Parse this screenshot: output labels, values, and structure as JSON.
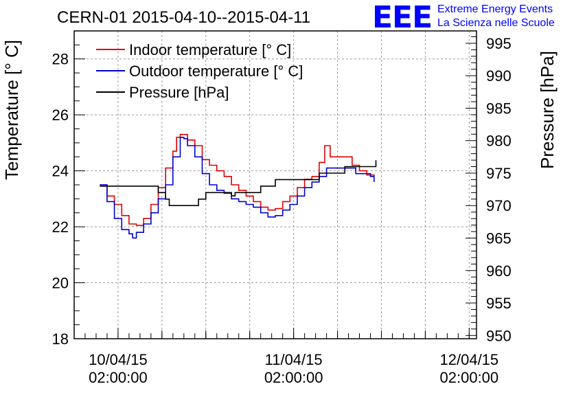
{
  "header": {
    "title": "CERN-01 2015-04-10--2015-04-11",
    "logo_text": "EEE",
    "org_line1": "Extreme Energy Events",
    "org_line2": "La Scienza nelle Scuole",
    "brand_color": "#0000ff"
  },
  "chart_data": {
    "type": "line",
    "ylabel": "Temperature [° C]",
    "y2label": "Pressure [hPa]",
    "ylim": [
      18,
      29
    ],
    "y2lim": [
      949.5,
      996.9
    ],
    "xlim": [
      "2015-04-09T20:00:00",
      "2015-04-12T03:00:00"
    ],
    "yticks": [
      "18",
      "20",
      "22",
      "24",
      "26",
      "28"
    ],
    "y2ticks": [
      "950",
      "955",
      "960",
      "965",
      "970",
      "975",
      "980",
      "985",
      "990",
      "995"
    ],
    "xticks": [
      {
        "x": "2015-04-10T02:00:00",
        "date": "10/04/15",
        "time": "02:00:00"
      },
      {
        "x": "2015-04-11T02:00:00",
        "date": "11/04/15",
        "time": "02:00:00"
      },
      {
        "x": "2015-04-12T02:00:00",
        "date": "12/04/15",
        "time": "02:00:00"
      }
    ],
    "grid": true,
    "legend_position": "top-left",
    "series": [
      {
        "name": "Indoor temperature [° C]",
        "color": "#e00000",
        "axis": "left",
        "points": [
          [
            "2015-04-09T23:30",
            23.5
          ],
          [
            "2015-04-10T00:30",
            23.1
          ],
          [
            "2015-04-10T01:30",
            22.8
          ],
          [
            "2015-04-10T02:30",
            22.4
          ],
          [
            "2015-04-10T03:30",
            22.1
          ],
          [
            "2015-04-10T04:30",
            22.05
          ],
          [
            "2015-04-10T05:30",
            22.3
          ],
          [
            "2015-04-10T06:30",
            22.8
          ],
          [
            "2015-04-10T07:30",
            23.4
          ],
          [
            "2015-04-10T08:30",
            24.1
          ],
          [
            "2015-04-10T09:30",
            24.7
          ],
          [
            "2015-04-10T10:00",
            25.2
          ],
          [
            "2015-04-10T10:30",
            25.3
          ],
          [
            "2015-04-10T11:30",
            25.1
          ],
          [
            "2015-04-10T12:30",
            24.9
          ],
          [
            "2015-04-10T13:30",
            24.4
          ],
          [
            "2015-04-10T14:30",
            24.2
          ],
          [
            "2015-04-10T15:30",
            24.0
          ],
          [
            "2015-04-10T16:30",
            23.8
          ],
          [
            "2015-04-10T17:30",
            23.5
          ],
          [
            "2015-04-10T18:30",
            23.3
          ],
          [
            "2015-04-10T19:30",
            23.1
          ],
          [
            "2015-04-10T20:30",
            22.9
          ],
          [
            "2015-04-10T21:30",
            22.7
          ],
          [
            "2015-04-10T22:30",
            22.6
          ],
          [
            "2015-04-10T23:30",
            22.65
          ],
          [
            "2015-04-11T00:30",
            22.9
          ],
          [
            "2015-04-11T01:30",
            23.1
          ],
          [
            "2015-04-11T02:30",
            23.4
          ],
          [
            "2015-04-11T03:30",
            23.7
          ],
          [
            "2015-04-11T04:30",
            23.8
          ],
          [
            "2015-04-11T05:30",
            24.3
          ],
          [
            "2015-04-11T06:15",
            24.9
          ],
          [
            "2015-04-11T07:00",
            24.5
          ],
          [
            "2015-04-11T08:00",
            24.5
          ],
          [
            "2015-04-11T09:00",
            24.5
          ],
          [
            "2015-04-11T10:00",
            24.2
          ],
          [
            "2015-04-11T11:00",
            24.0
          ],
          [
            "2015-04-11T12:00",
            23.85
          ],
          [
            "2015-04-11T13:00",
            23.8
          ]
        ]
      },
      {
        "name": "Outdoor temperature [° C]",
        "color": "#0000d0",
        "axis": "left",
        "points": [
          [
            "2015-04-09T23:30",
            23.5
          ],
          [
            "2015-04-10T00:30",
            22.9
          ],
          [
            "2015-04-10T01:30",
            22.3
          ],
          [
            "2015-04-10T02:30",
            21.9
          ],
          [
            "2015-04-10T03:30",
            21.75
          ],
          [
            "2015-04-10T04:00",
            21.6
          ],
          [
            "2015-04-10T04:30",
            21.8
          ],
          [
            "2015-04-10T05:30",
            22.1
          ],
          [
            "2015-04-10T06:30",
            22.5
          ],
          [
            "2015-04-10T07:30",
            23.0
          ],
          [
            "2015-04-10T08:30",
            23.5
          ],
          [
            "2015-04-10T09:30",
            24.5
          ],
          [
            "2015-04-10T10:30",
            25.2
          ],
          [
            "2015-04-10T11:00",
            25.15
          ],
          [
            "2015-04-10T11:30",
            24.9
          ],
          [
            "2015-04-10T12:30",
            24.5
          ],
          [
            "2015-04-10T13:30",
            23.9
          ],
          [
            "2015-04-10T14:30",
            23.5
          ],
          [
            "2015-04-10T15:30",
            23.3
          ],
          [
            "2015-04-10T16:30",
            23.2
          ],
          [
            "2015-04-10T17:30",
            23.0
          ],
          [
            "2015-04-10T18:30",
            22.9
          ],
          [
            "2015-04-10T19:30",
            22.8
          ],
          [
            "2015-04-10T20:30",
            22.7
          ],
          [
            "2015-04-10T21:30",
            22.5
          ],
          [
            "2015-04-10T22:30",
            22.35
          ],
          [
            "2015-04-10T23:30",
            22.4
          ],
          [
            "2015-04-11T00:30",
            22.6
          ],
          [
            "2015-04-11T01:30",
            22.8
          ],
          [
            "2015-04-11T02:30",
            23.1
          ],
          [
            "2015-04-11T03:30",
            23.4
          ],
          [
            "2015-04-11T04:30",
            23.6
          ],
          [
            "2015-04-11T05:30",
            23.8
          ],
          [
            "2015-04-11T06:30",
            24.1
          ],
          [
            "2015-04-11T08:00",
            24.1
          ],
          [
            "2015-04-11T09:30",
            24.1
          ],
          [
            "2015-04-11T10:30",
            23.9
          ],
          [
            "2015-04-11T11:30",
            23.9
          ],
          [
            "2015-04-11T12:30",
            23.8
          ],
          [
            "2015-04-11T13:00",
            23.6
          ]
        ]
      },
      {
        "name": "Pressure [hPa]",
        "color": "#000000",
        "axis": "right",
        "points": [
          [
            "2015-04-09T23:30",
            973
          ],
          [
            "2015-04-10T07:00",
            973
          ],
          [
            "2015-04-10T07:30",
            972
          ],
          [
            "2015-04-10T08:30",
            971
          ],
          [
            "2015-04-10T09:00",
            970
          ],
          [
            "2015-04-10T12:00",
            970
          ],
          [
            "2015-04-10T13:00",
            971
          ],
          [
            "2015-04-10T14:00",
            972
          ],
          [
            "2015-04-10T17:00",
            972
          ],
          [
            "2015-04-10T17:30",
            971.5
          ],
          [
            "2015-04-10T18:00",
            972
          ],
          [
            "2015-04-10T21:00",
            972
          ],
          [
            "2015-04-10T21:30",
            973
          ],
          [
            "2015-04-10T23:00",
            973
          ],
          [
            "2015-04-10T23:30",
            974
          ],
          [
            "2015-04-11T05:00",
            974
          ],
          [
            "2015-04-11T05:30",
            975
          ],
          [
            "2015-04-11T08:30",
            975
          ],
          [
            "2015-04-11T09:00",
            976
          ],
          [
            "2015-04-11T13:00",
            976
          ],
          [
            "2015-04-11T13:15",
            977
          ]
        ]
      }
    ]
  }
}
